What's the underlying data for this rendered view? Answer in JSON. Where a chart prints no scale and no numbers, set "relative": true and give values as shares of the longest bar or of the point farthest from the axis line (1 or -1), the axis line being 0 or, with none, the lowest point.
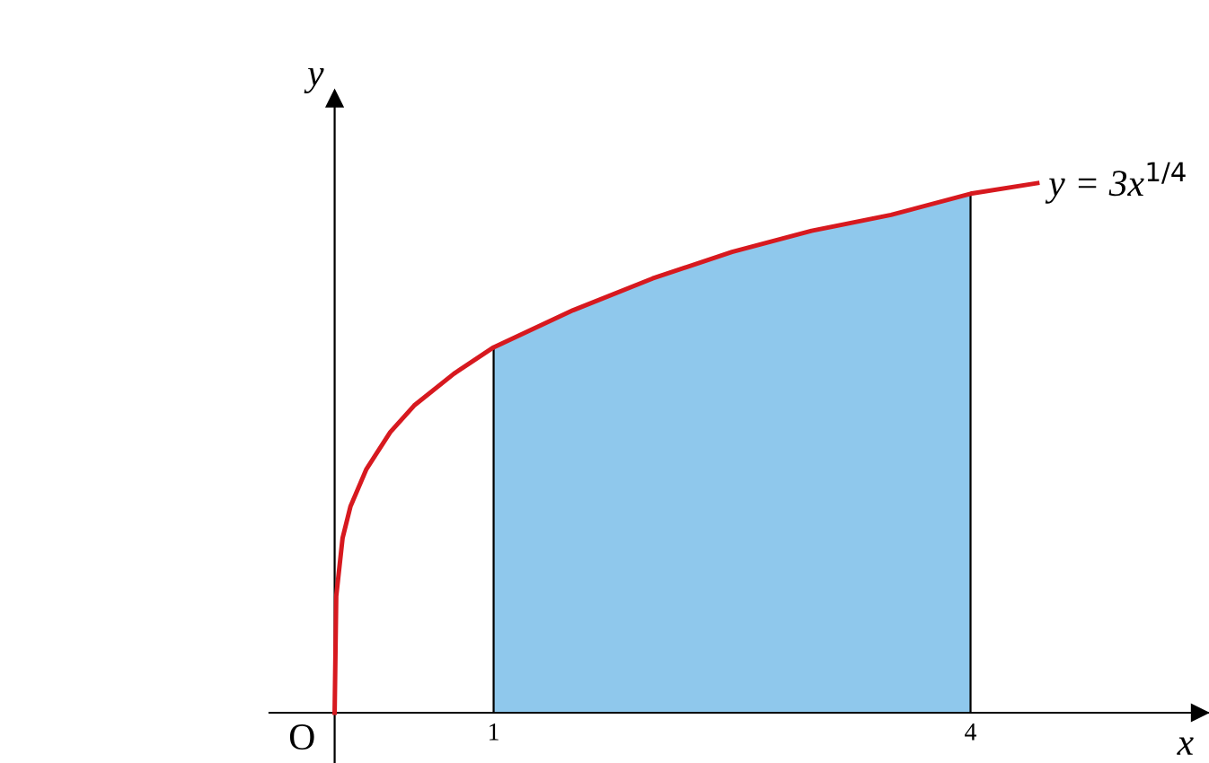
{
  "chart_data": {
    "type": "line",
    "relative": true,
    "xlabel": "x",
    "ylabel": "y",
    "xlim": [
      -0.41,
      5.5
    ],
    "xticks": [
      1,
      4
    ],
    "grid": false,
    "legend": false,
    "annotations": [
      "O"
    ],
    "series": [
      {
        "type": "area",
        "color": "#8fc8ec",
        "x": [
          1,
          1.5,
          2,
          2.5,
          3,
          3.5,
          4
        ],
        "values": [
          0.69,
          0.76,
          0.82,
          0.87,
          0.91,
          0.94,
          0.98
        ]
      },
      {
        "name": "y = 3x$^{1/4}$",
        "color": "#d7191f",
        "x": [
          0,
          0.01,
          0.05,
          0.1,
          0.2,
          0.35,
          0.5,
          0.75,
          1,
          1.5,
          2,
          2.5,
          3,
          3.5,
          4,
          4.42
        ],
        "values": [
          0,
          0.22,
          0.33,
          0.39,
          0.46,
          0.53,
          0.58,
          0.64,
          0.69,
          0.76,
          0.82,
          0.87,
          0.91,
          0.94,
          0.98,
          1
        ]
      }
    ]
  }
}
